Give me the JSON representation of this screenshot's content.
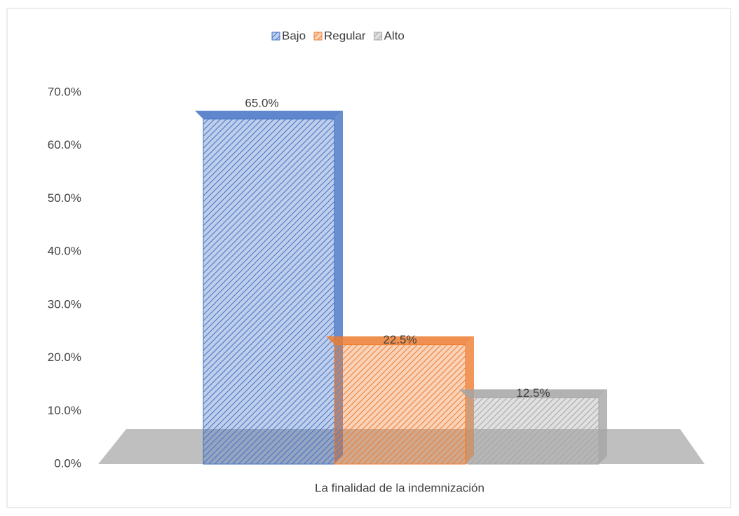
{
  "chart_data": {
    "type": "bar3d",
    "categories": [
      "La finalidad de la indemnización"
    ],
    "series": [
      {
        "name": "Bajo",
        "color": "#4472c4",
        "values": [
          65
        ],
        "value_labels": [
          "65.0%"
        ]
      },
      {
        "name": "Regular",
        "color": "#ed7d31",
        "values": [
          22.5
        ],
        "value_labels": [
          "22.5%"
        ]
      },
      {
        "name": "Alto",
        "color": "#a5a5a5",
        "values": [
          12.5
        ],
        "value_labels": [
          "12.5%"
        ]
      }
    ],
    "ylim": [
      0,
      70
    ],
    "yticks": [
      {
        "value": 0,
        "label": "0.0%"
      },
      {
        "value": 10,
        "label": "10.0%"
      },
      {
        "value": 20,
        "label": "20.0%"
      },
      {
        "value": 30,
        "label": "30.0%"
      },
      {
        "value": 40,
        "label": "40.0%"
      },
      {
        "value": 50,
        "label": "50.0%"
      },
      {
        "value": 60,
        "label": "60.0%"
      },
      {
        "value": 70,
        "label": "70.0%"
      }
    ],
    "legend": "top"
  }
}
